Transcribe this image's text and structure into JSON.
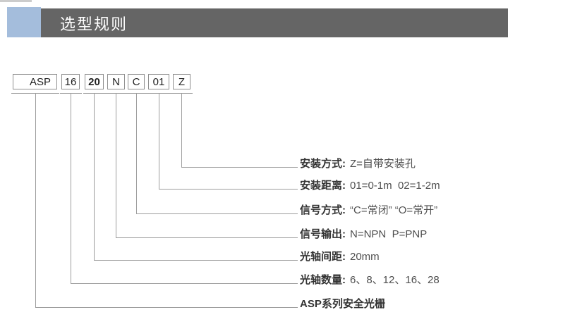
{
  "header": {
    "title": "选型规则"
  },
  "model_code": {
    "segments": [
      {
        "text": "ASP",
        "bold": false
      },
      {
        "text": "16",
        "bold": false
      },
      {
        "text": "20",
        "bold": true
      },
      {
        "text": "N",
        "bold": false
      },
      {
        "text": "C",
        "bold": false
      },
      {
        "text": "01",
        "bold": false
      },
      {
        "text": "Z",
        "bold": false
      }
    ]
  },
  "legend": {
    "rows": [
      {
        "label": "安装方式:",
        "value": "Z=自带安装孔"
      },
      {
        "label": "安装距离:",
        "value": "01=0-1m  02=1-2m"
      },
      {
        "label": "信号方式:",
        "value": "“C=常闭” “O=常开”"
      },
      {
        "label": "信号输出:",
        "value": "N=NPN  P=PNP"
      },
      {
        "label": "光轴间距:",
        "value": "20mm"
      },
      {
        "label": "光轴数量:",
        "value": "6、8、12、16、28"
      },
      {
        "label": "ASP系列安全光栅",
        "value": ""
      }
    ]
  },
  "colors": {
    "accent_blue": "#a4bddc",
    "header_gray": "#656565",
    "line_gray": "#9d9d9d"
  }
}
